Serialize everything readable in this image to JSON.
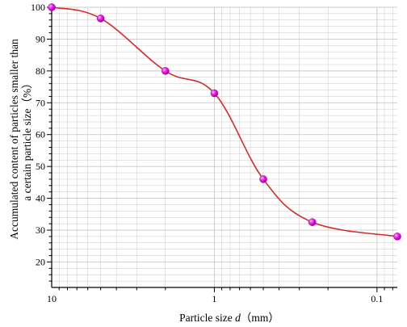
{
  "chart_data": {
    "type": "line",
    "title": "",
    "xlabel": "Particle size d（mm）",
    "xlabel_parts": [
      "Particle size ",
      "d",
      "（mm）"
    ],
    "ylabel": "Accumulated content of particles smaller than a certain particle size（%）",
    "ylabel_lines": [
      "Accumulated content of particles smaller than",
      "a certain particle size（%）"
    ],
    "xscale": "log",
    "x_reversed": true,
    "xlim": [
      10,
      0.075
    ],
    "ylim": [
      12,
      100
    ],
    "x_ticks": [
      10,
      1,
      0.1
    ],
    "x_tick_labels": [
      "10",
      "1",
      "0.1"
    ],
    "y_ticks": [
      20,
      30,
      40,
      50,
      60,
      70,
      80,
      90,
      100
    ],
    "y_tick_labels": [
      "20",
      "30",
      "40",
      "50",
      "60",
      "70",
      "80",
      "90",
      "100"
    ],
    "grid": true,
    "legend": "none",
    "series": [
      {
        "x": [
          10,
          5,
          2,
          1,
          0.5,
          0.25,
          0.075
        ],
        "y": [
          100,
          96.5,
          80,
          73,
          46,
          32.5,
          28
        ]
      }
    ],
    "colors": {
      "line": "#d42a2a",
      "marker": "#e600e6",
      "grid": "#c8c8c8",
      "axis": "#000000"
    }
  }
}
